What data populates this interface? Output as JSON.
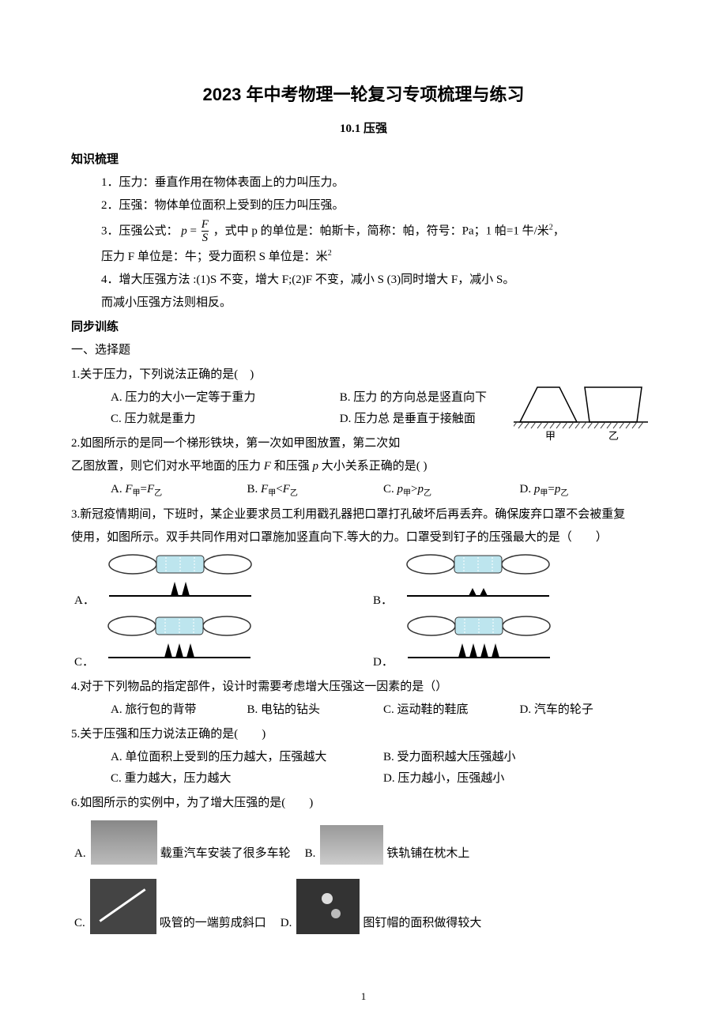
{
  "title": "2023 年中考物理一轮复习专项梳理与练习",
  "subtitle": "10.1 压强",
  "section1": "知识梳理",
  "outline": {
    "item1": "1．压力：垂直作用在物体表面上的力叫压力。",
    "item2": "2．压强：物体单位面积上受到的压力叫压强。",
    "item3_pre": "3．压强公式：",
    "item3_eq_p": "p",
    "item3_eq_eq": " = ",
    "item3_eq_F": "F",
    "item3_eq_S": "S",
    "item3_post": "，式中 p 的单位是：帕斯卡，简称：帕，符号：Pa；1 帕=1 牛/米",
    "item3_sup": "2",
    "item3_end": "，",
    "item3_line2": "压力 F 单位是：牛；受力面积 S 单位是：米",
    "item3_line2_sup": "2",
    "item4": "4．增大压强方法 :(1)S 不变，增大 F;(2)F 不变，减小 S    (3)同时增大 F，减小 S。",
    "item4b": "而减小压强方法则相反。"
  },
  "section2": "同步训练",
  "section2_sub": "一、选择题",
  "q1": {
    "stem": "1.关于压力，下列说法正确的是(　)",
    "A": "A. 压力的大小一定等于重力",
    "B": "B. 压力 的方向总是竖直向下",
    "C": "C. 压力就是重力",
    "D": "D. 压力总 是垂直于接触面"
  },
  "q2": {
    "line1": "2.如图所示的是同一个梯形铁块，第一次如甲图放置，第二次如",
    "line2_pre": "乙图放置，则它们对水平地面的压力 ",
    "line2_F": "F",
    "line2_mid": " 和压强 ",
    "line2_p": "p",
    "line2_post": " 大小关系正确的是(  )",
    "A_pre": "A. ",
    "A_F": "F",
    "A_sub1": "甲",
    "A_eq": "=",
    "A_F2": "F",
    "A_sub2": "乙",
    "B_pre": "B. ",
    "B_F": "F",
    "B_sub1": "甲",
    "B_lt": "<",
    "B_F2": "F",
    "B_sub2": "乙",
    "C_pre": "C. ",
    "C_p": "p",
    "C_sub1": "甲",
    "C_gt": ">",
    "C_p2": "p",
    "C_sub2": "乙",
    "D_pre": "D. ",
    "D_p": "p",
    "D_sub1": "甲",
    "D_eq": "=",
    "D_p2": "p",
    "D_sub2": "乙",
    "fig_label_left": "甲",
    "fig_label_right": "乙"
  },
  "q3": {
    "line1": "3.新冠疫情期间，下班时，某企业要求员工利用戳孔器把口罩打孔破坏后再丢弃。确保废弃口罩不会被重复",
    "line2": "使用，如图所示。双手共同作用对口罩施加竖直向下.等大的力。口罩受到钉子的压强最大的是（　　）",
    "A": "A．",
    "B": "B．",
    "C": "C．",
    "D": "D．",
    "nails_A": 2,
    "nails_B": 2,
    "nails_C": 3,
    "nails_D": 4,
    "nail_height_A": 18,
    "nail_height_B": 10,
    "nail_height_C": 18,
    "nail_height_D": 18
  },
  "q4": {
    "stem": "4.对于下列物品的指定部件，设计时需要考虑增大压强这一因素的是（）",
    "A": "A. 旅行包的背带",
    "B": "B. 电钻的钻头",
    "C": "C. 运动鞋的鞋底",
    "D": "D. 汽车的轮子"
  },
  "q5": {
    "stem": "5.关于压强和压力说法正确的是(　　)",
    "A": "A. 单位面积上受到的压力越大，压强越大",
    "B": "B. 受力面积越大压强越小",
    "C": "C. 重力越大，压力越大",
    "D": "D. 压力越小，压强越小"
  },
  "q6": {
    "stem": "6.如图所示的实例中，为了增大压强的是(　　)",
    "A_label": "A.",
    "A_text": "载重汽车安装了很多车轮",
    "B_label": "B.",
    "B_text": "铁轨铺在枕木上",
    "C_label": "C.",
    "C_text": "吸管的一端剪成斜口",
    "D_label": "D.",
    "D_text": "图钉帽的面积做得较大"
  },
  "page_num": "1",
  "colors": {
    "text": "#000000",
    "bg": "#ffffff",
    "mask_fill": "#bde5ee",
    "mask_stroke": "#333333",
    "nail_fill": "#000000",
    "ground_hatch": "#333333"
  }
}
